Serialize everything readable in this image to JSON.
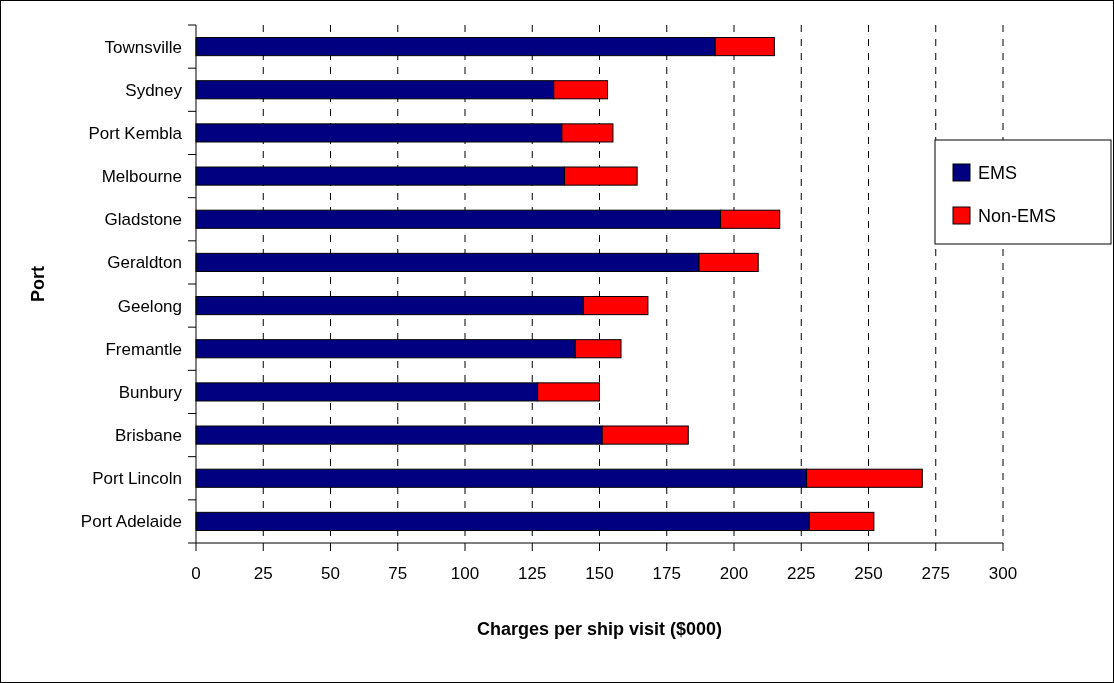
{
  "chart_data": {
    "type": "bar",
    "orientation": "horizontal",
    "stacked": true,
    "xlabel": "Charges per ship visit ($000)",
    "ylabel": "Port",
    "categories": [
      "Townsville",
      "Sydney",
      "Port Kembla",
      "Melbourne",
      "Gladstone",
      "Geraldton",
      "Geelong",
      "Fremantle",
      "Bunbury",
      "Brisbane",
      "Port Lincoln",
      "Port Adelaide"
    ],
    "series": [
      {
        "name": "EMS",
        "color": "#000080",
        "values": [
          193,
          133,
          136,
          137,
          195,
          187,
          144,
          141,
          127,
          151,
          227,
          228
        ]
      },
      {
        "name": "Non-EMS",
        "color": "#ff0000",
        "values": [
          22,
          20,
          19,
          27,
          22,
          22,
          24,
          17,
          23,
          32,
          43,
          24
        ]
      }
    ],
    "xlim": [
      0,
      300
    ],
    "xticks": [
      0,
      25,
      50,
      75,
      100,
      125,
      150,
      175,
      200,
      225,
      250,
      275,
      300
    ],
    "grid": "x",
    "legend": "right"
  }
}
